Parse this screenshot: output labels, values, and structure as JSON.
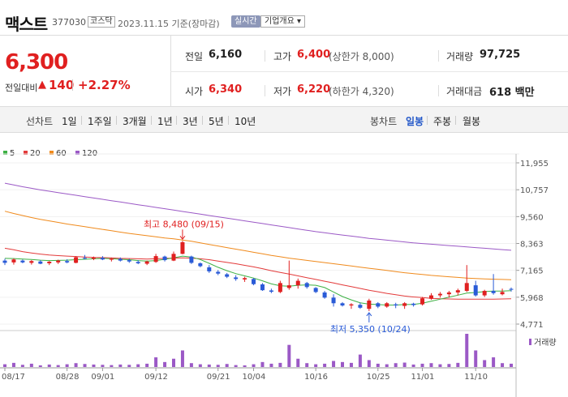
{
  "header": {
    "stock_name": "맥스트",
    "stock_code": "377030",
    "market": "코스닥",
    "date": "2023.11.15 기준(장마감)",
    "realtime_label": "실시간",
    "company_label": "기업개요 ▾"
  },
  "price": {
    "current": "6,300",
    "diff_label": "전일대비",
    "diff_arrow": "▲",
    "diff_value": "140",
    "diff_pct": "+2.27%"
  },
  "stats": {
    "prev_label": "전일",
    "prev_value": "6,160",
    "high_label": "고가",
    "high_value": "6,400",
    "upper_limit": "(상한가 8,000)",
    "volume_label": "거래량",
    "volume_value": "97,725",
    "open_label": "시가",
    "open_value": "6,340",
    "low_label": "저가",
    "low_value": "6,220",
    "lower_limit": "(하한가 4,320)",
    "amount_label": "거래대금",
    "amount_value": "618 백만"
  },
  "toolbar": {
    "line_label": "선차트",
    "line_periods": [
      "1일",
      "1주일",
      "3개월",
      "1년",
      "3년",
      "5년",
      "10년"
    ],
    "candle_label": "봉차트",
    "candle_periods": [
      "일봉",
      "주봉",
      "월봉"
    ],
    "active_candle": "일봉"
  },
  "colors": {
    "up": "#e02020",
    "down": "#2a5bd7",
    "ma5": "#3cb043",
    "ma20": "#e33a3a",
    "ma60": "#f08a1c",
    "ma120": "#9b59c6",
    "volume": "#9b59c6"
  },
  "chart_data": {
    "type": "candlestick",
    "legend": [
      {
        "name": "5",
        "color": "#3cb043"
      },
      {
        "name": "20",
        "color": "#e33a3a"
      },
      {
        "name": "60",
        "color": "#f08a1c"
      },
      {
        "name": "120",
        "color": "#9b59c6"
      }
    ],
    "y_ticks": [
      "11,955",
      "10,757",
      "9,560",
      "8,363",
      "7,165",
      "5,968",
      "4,771"
    ],
    "y_tick_values": [
      11955,
      10757,
      9560,
      8363,
      7165,
      5968,
      4771
    ],
    "x_ticks": [
      {
        "label": "08/17",
        "index": 0
      },
      {
        "label": "08/28",
        "index": 7
      },
      {
        "label": "09/01",
        "index": 11
      },
      {
        "label": "09/12",
        "index": 17
      },
      {
        "label": "09/21",
        "index": 24
      },
      {
        "label": "10/04",
        "index": 28
      },
      {
        "label": "10/16",
        "index": 35
      },
      {
        "label": "10/25",
        "index": 42
      },
      {
        "label": "11/01",
        "index": 47
      },
      {
        "label": "11/10",
        "index": 53
      }
    ],
    "high_annotation": {
      "text": "최고 8,480 (09/15)",
      "index": 20,
      "value": 8480
    },
    "low_annotation": {
      "text": "최저 5,350 (10/24)",
      "index": 41,
      "value": 5350
    },
    "volume_label": "거래량",
    "candles": [
      [
        7600,
        7680,
        7400,
        7500
      ],
      [
        7520,
        7700,
        7420,
        7650
      ],
      [
        7600,
        7650,
        7480,
        7520
      ],
      [
        7500,
        7620,
        7420,
        7580
      ],
      [
        7560,
        7620,
        7440,
        7460
      ],
      [
        7480,
        7580,
        7400,
        7550
      ],
      [
        7520,
        7640,
        7450,
        7600
      ],
      [
        7580,
        7660,
        7480,
        7520
      ],
      [
        7500,
        7800,
        7480,
        7750
      ],
      [
        7720,
        7850,
        7650,
        7700
      ],
      [
        7680,
        7780,
        7620,
        7740
      ],
      [
        7720,
        7800,
        7620,
        7650
      ],
      [
        7640,
        7720,
        7560,
        7690
      ],
      [
        7680,
        7740,
        7560,
        7600
      ],
      [
        7620,
        7680,
        7500,
        7560
      ],
      [
        7540,
        7620,
        7440,
        7480
      ],
      [
        7460,
        7600,
        7400,
        7560
      ],
      [
        7540,
        7900,
        7500,
        7800
      ],
      [
        7780,
        7820,
        7560,
        7620
      ],
      [
        7600,
        8000,
        7580,
        7900
      ],
      [
        7900,
        8480,
        7880,
        8420
      ],
      [
        7780,
        7820,
        7450,
        7500
      ],
      [
        7480,
        7520,
        7300,
        7350
      ],
      [
        7300,
        7400,
        7050,
        7120
      ],
      [
        7100,
        7180,
        6950,
        7020
      ],
      [
        6990,
        7050,
        6820,
        6880
      ],
      [
        6850,
        6950,
        6700,
        6780
      ],
      [
        6760,
        6880,
        6650,
        6820
      ],
      [
        6780,
        6820,
        6500,
        6550
      ],
      [
        6540,
        6600,
        6250,
        6280
      ],
      [
        6270,
        6350,
        6150,
        6210
      ],
      [
        6200,
        6700,
        6150,
        6600
      ],
      [
        6380,
        7600,
        6300,
        6500
      ],
      [
        6500,
        6800,
        6350,
        6700
      ],
      [
        6600,
        6650,
        6350,
        6420
      ],
      [
        6380,
        6420,
        6150,
        6200
      ],
      [
        6180,
        6250,
        5900,
        5950
      ],
      [
        5950,
        6100,
        5550,
        5700
      ],
      [
        5700,
        5750,
        5550,
        5600
      ],
      [
        5600,
        5700,
        5450,
        5650
      ],
      [
        5630,
        5720,
        5450,
        5500
      ],
      [
        5450,
        5900,
        5350,
        5820
      ],
      [
        5700,
        5750,
        5480,
        5550
      ],
      [
        5550,
        5750,
        5500,
        5700
      ],
      [
        5650,
        5720,
        5480,
        5600
      ],
      [
        5580,
        5750,
        5450,
        5700
      ],
      [
        5680,
        5720,
        5550,
        5620
      ],
      [
        5650,
        5980,
        5600,
        5920
      ],
      [
        5900,
        6150,
        5850,
        6050
      ],
      [
        6050,
        6200,
        5950,
        6120
      ],
      [
        6100,
        6250,
        5950,
        6180
      ],
      [
        6180,
        6350,
        6050,
        6280
      ],
      [
        6250,
        7400,
        6200,
        6600
      ],
      [
        6500,
        6700,
        6000,
        6050
      ],
      [
        6050,
        6300,
        5980,
        6250
      ],
      [
        6250,
        7000,
        6080,
        6150
      ],
      [
        6100,
        6350,
        6050,
        6200
      ],
      [
        6340,
        6400,
        6220,
        6300
      ]
    ],
    "volumes": [
      10,
      15,
      8,
      12,
      6,
      9,
      7,
      10,
      14,
      11,
      9,
      8,
      7,
      9,
      8,
      10,
      12,
      35,
      18,
      30,
      60,
      14,
      10,
      9,
      8,
      11,
      7,
      6,
      10,
      18,
      12,
      15,
      80,
      30,
      14,
      10,
      12,
      22,
      18,
      15,
      45,
      25,
      12,
      10,
      14,
      16,
      9,
      12,
      14,
      10,
      11,
      15,
      120,
      60,
      25,
      35,
      14,
      12
    ],
    "ma5": [
      7700,
      7690,
      7670,
      7650,
      7620,
      7600,
      7610,
      7620,
      7640,
      7660,
      7680,
      7700,
      7680,
      7660,
      7640,
      7600,
      7580,
      7600,
      7660,
      7720,
      7800,
      7760,
      7650,
      7480,
      7300,
      7150,
      7020,
      6920,
      6820,
      6700,
      6560,
      6480,
      6460,
      6500,
      6520,
      6500,
      6400,
      6200,
      6000,
      5850,
      5720,
      5660,
      5640,
      5620,
      5620,
      5640,
      5650,
      5700,
      5790,
      5880,
      5970,
      6060,
      6150,
      6180,
      6220,
      6240,
      6240,
      6260
    ],
    "ma20": [
      8150,
      8080,
      8000,
      7940,
      7890,
      7850,
      7820,
      7800,
      7780,
      7760,
      7740,
      7730,
      7720,
      7700,
      7690,
      7680,
      7670,
      7680,
      7700,
      7710,
      7720,
      7710,
      7680,
      7640,
      7580,
      7520,
      7460,
      7390,
      7320,
      7240,
      7150,
      7070,
      7000,
      6920,
      6840,
      6760,
      6680,
      6600,
      6520,
      6440,
      6360,
      6280,
      6210,
      6140,
      6080,
      6020,
      5980,
      5950,
      5920,
      5900,
      5890,
      5880,
      5880,
      5880,
      5880,
      5880,
      5890,
      5900
    ],
    "ma60": [
      9800,
      9700,
      9610,
      9520,
      9440,
      9370,
      9300,
      9230,
      9170,
      9110,
      9050,
      8990,
      8930,
      8870,
      8810,
      8760,
      8710,
      8660,
      8610,
      8570,
      8520,
      8460,
      8390,
      8320,
      8250,
      8180,
      8110,
      8040,
      7970,
      7900,
      7830,
      7770,
      7710,
      7660,
      7610,
      7560,
      7510,
      7460,
      7410,
      7360,
      7310,
      7260,
      7210,
      7160,
      7110,
      7060,
      7020,
      6980,
      6940,
      6910,
      6880,
      6850,
      6820,
      6800,
      6780,
      6770,
      6760,
      6750
    ],
    "ma120": [
      11050,
      10970,
      10890,
      10820,
      10750,
      10690,
      10630,
      10570,
      10510,
      10450,
      10390,
      10330,
      10270,
      10210,
      10150,
      10090,
      10030,
      9970,
      9910,
      9850,
      9790,
      9730,
      9670,
      9610,
      9550,
      9490,
      9430,
      9370,
      9310,
      9250,
      9190,
      9130,
      9070,
      9010,
      8950,
      8890,
      8840,
      8790,
      8740,
      8690,
      8640,
      8590,
      8550,
      8510,
      8470,
      8430,
      8390,
      8360,
      8330,
      8300,
      8270,
      8240,
      8210,
      8180,
      8150,
      8120,
      8090,
      8060
    ]
  }
}
